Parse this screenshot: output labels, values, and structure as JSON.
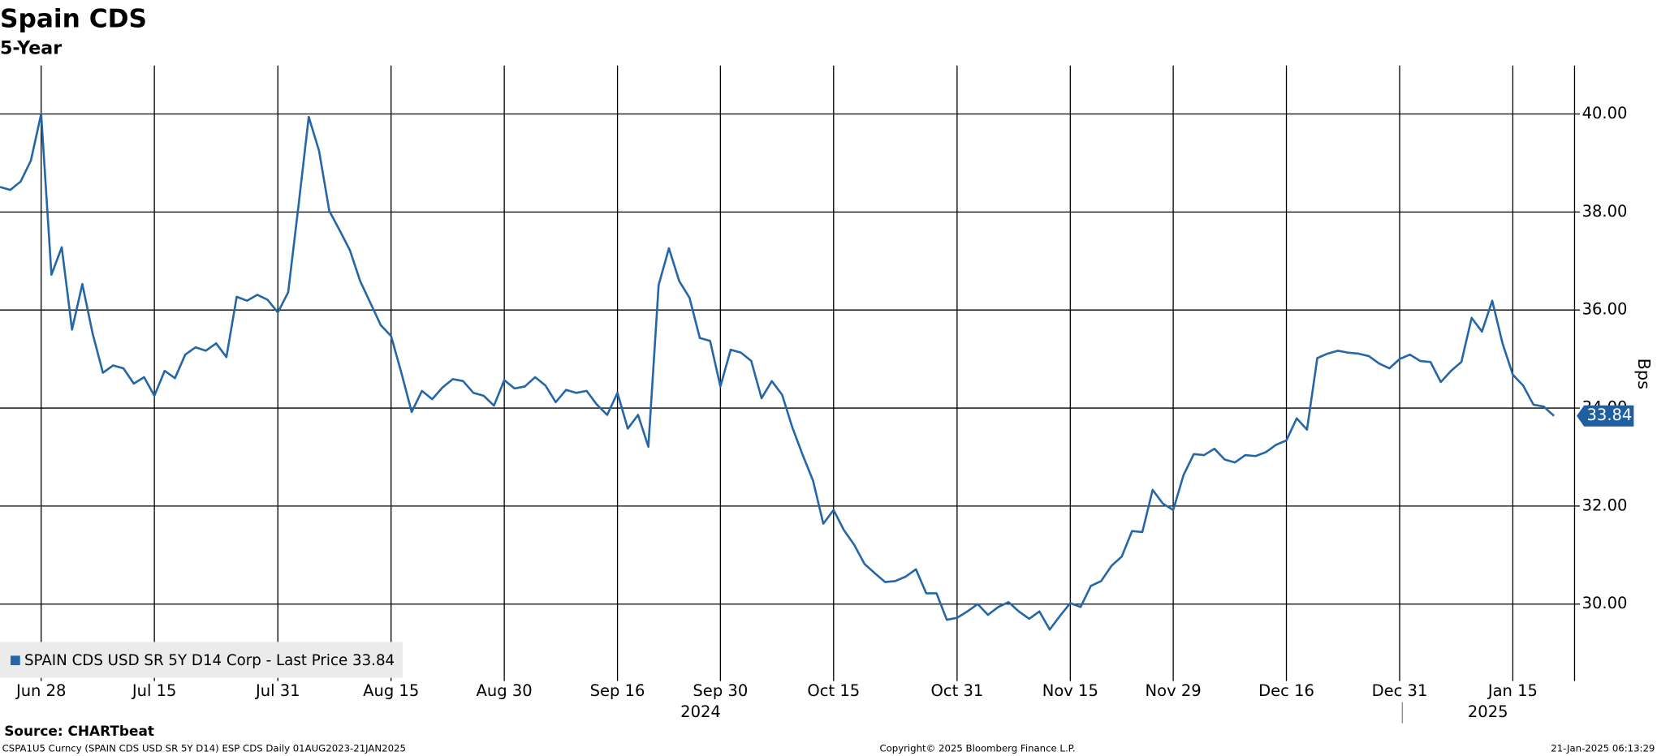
{
  "chart_data": {
    "type": "line",
    "title": "Spain CDS",
    "subtitle": "5-Year",
    "y_label": "Bps",
    "source": "Source: CHARTbeat",
    "footer_left": "CSPA1U5 Curncy (SPAIN CDS USD SR 5Y D14) ESP CDS  Daily 01AUG2023-21JAN2025",
    "footer_center": "Copyright© 2025 Bloomberg Finance L.P.",
    "footer_right": "21-Jan-2025 06:13:29",
    "year_labels": [
      "2024",
      "2025"
    ],
    "last_value_label": "33.84",
    "grid": true,
    "x": [
      "2024-06-24",
      "2024-06-25",
      "2024-06-26",
      "2024-06-27",
      "2024-06-28",
      "2024-07-01",
      "2024-07-02",
      "2024-07-03",
      "2024-07-04",
      "2024-07-05",
      "2024-07-08",
      "2024-07-09",
      "2024-07-10",
      "2024-07-11",
      "2024-07-12",
      "2024-07-15",
      "2024-07-16",
      "2024-07-17",
      "2024-07-18",
      "2024-07-19",
      "2024-07-22",
      "2024-07-23",
      "2024-07-24",
      "2024-07-25",
      "2024-07-26",
      "2024-07-29",
      "2024-07-30",
      "2024-07-31",
      "2024-08-01",
      "2024-08-02",
      "2024-08-05",
      "2024-08-06",
      "2024-08-07",
      "2024-08-08",
      "2024-08-09",
      "2024-08-12",
      "2024-08-13",
      "2024-08-14",
      "2024-08-15",
      "2024-08-16",
      "2024-08-19",
      "2024-08-20",
      "2024-08-21",
      "2024-08-22",
      "2024-08-23",
      "2024-08-26",
      "2024-08-27",
      "2024-08-28",
      "2024-08-29",
      "2024-08-30",
      "2024-09-02",
      "2024-09-03",
      "2024-09-04",
      "2024-09-05",
      "2024-09-06",
      "2024-09-09",
      "2024-09-10",
      "2024-09-11",
      "2024-09-12",
      "2024-09-13",
      "2024-09-16",
      "2024-09-17",
      "2024-09-18",
      "2024-09-19",
      "2024-09-20",
      "2024-09-23",
      "2024-09-24",
      "2024-09-25",
      "2024-09-26",
      "2024-09-27",
      "2024-09-30",
      "2024-10-01",
      "2024-10-02",
      "2024-10-03",
      "2024-10-04",
      "2024-10-07",
      "2024-10-08",
      "2024-10-09",
      "2024-10-10",
      "2024-10-11",
      "2024-10-14",
      "2024-10-15",
      "2024-10-16",
      "2024-10-17",
      "2024-10-18",
      "2024-10-21",
      "2024-10-22",
      "2024-10-23",
      "2024-10-24",
      "2024-10-25",
      "2024-10-28",
      "2024-10-29",
      "2024-10-30",
      "2024-10-31",
      "2024-11-01",
      "2024-11-04",
      "2024-11-05",
      "2024-11-06",
      "2024-11-07",
      "2024-11-08",
      "2024-11-11",
      "2024-11-12",
      "2024-11-13",
      "2024-11-14",
      "2024-11-15",
      "2024-11-18",
      "2024-11-19",
      "2024-11-20",
      "2024-11-21",
      "2024-11-22",
      "2024-11-25",
      "2024-11-26",
      "2024-11-27",
      "2024-11-28",
      "2024-11-29",
      "2024-12-02",
      "2024-12-03",
      "2024-12-04",
      "2024-12-05",
      "2024-12-06",
      "2024-12-09",
      "2024-12-10",
      "2024-12-11",
      "2024-12-12",
      "2024-12-13",
      "2024-12-16",
      "2024-12-17",
      "2024-12-18",
      "2024-12-19",
      "2024-12-20",
      "2024-12-23",
      "2024-12-24",
      "2024-12-25",
      "2024-12-26",
      "2024-12-27",
      "2024-12-30",
      "2024-12-31",
      "2025-01-01",
      "2025-01-02",
      "2025-01-03",
      "2025-01-06",
      "2025-01-07",
      "2025-01-08",
      "2025-01-09",
      "2025-01-10",
      "2025-01-13",
      "2025-01-14",
      "2025-01-15",
      "2025-01-16",
      "2025-01-17",
      "2025-01-20",
      "2025-01-21"
    ],
    "series": [
      {
        "name": "SPAIN CDS USD SR 5Y D14 Corp - Last Price 33.84",
        "color": "#2566a6",
        "values": [
          38.51,
          38.45,
          38.62,
          39.05,
          40.0,
          36.72,
          37.28,
          35.6,
          36.53,
          35.52,
          34.72,
          34.87,
          34.81,
          34.5,
          34.63,
          34.25,
          34.76,
          34.61,
          35.09,
          35.24,
          35.17,
          35.32,
          35.04,
          36.27,
          36.19,
          36.31,
          36.21,
          35.95,
          36.36,
          38.12,
          39.94,
          39.25,
          38.02,
          37.63,
          37.22,
          36.59,
          36.14,
          35.69,
          35.47,
          34.72,
          33.92,
          34.35,
          34.18,
          34.42,
          34.59,
          34.55,
          34.31,
          34.25,
          34.05,
          34.57,
          34.4,
          34.44,
          34.63,
          34.46,
          34.12,
          34.37,
          34.31,
          34.35,
          34.07,
          33.86,
          34.31,
          33.58,
          33.86,
          33.21,
          36.51,
          37.26,
          36.59,
          36.25,
          35.43,
          35.37,
          34.44,
          35.19,
          35.13,
          34.96,
          34.2,
          34.55,
          34.27,
          33.6,
          33.04,
          32.52,
          31.64,
          31.92,
          31.51,
          31.21,
          30.82,
          30.63,
          30.45,
          30.47,
          30.56,
          30.71,
          30.22,
          30.22,
          29.68,
          29.72,
          29.85,
          30.0,
          29.78,
          29.94,
          30.04,
          29.85,
          29.7,
          29.85,
          29.48,
          29.76,
          30.02,
          29.94,
          30.37,
          30.47,
          30.78,
          30.97,
          31.49,
          31.47,
          32.33,
          32.05,
          31.92,
          32.63,
          33.06,
          33.04,
          33.17,
          32.95,
          32.89,
          33.04,
          33.02,
          33.1,
          33.25,
          33.34,
          33.79,
          33.56,
          35.02,
          35.11,
          35.17,
          35.13,
          35.11,
          35.06,
          34.91,
          34.81,
          35.0,
          35.09,
          34.96,
          34.94,
          34.53,
          34.76,
          34.94,
          35.84,
          35.56,
          36.19,
          35.32,
          34.68,
          34.46,
          34.07,
          34.03,
          33.84
        ]
      }
    ],
    "xlim": [
      "2024-06-24",
      "2025-01-23"
    ],
    "xticks": [
      {
        "value": "2024-06-28",
        "label": "Jun 28"
      },
      {
        "value": "2024-07-15",
        "label": "Jul 15"
      },
      {
        "value": "2024-07-31",
        "label": "Jul 31"
      },
      {
        "value": "2024-08-15",
        "label": "Aug 15"
      },
      {
        "value": "2024-08-30",
        "label": "Aug 30"
      },
      {
        "value": "2024-09-16",
        "label": "Sep 16"
      },
      {
        "value": "2024-09-30",
        "label": "Sep 30"
      },
      {
        "value": "2024-10-15",
        "label": "Oct 15"
      },
      {
        "value": "2024-10-31",
        "label": "Oct 31"
      },
      {
        "value": "2024-11-15",
        "label": "Nov 15"
      },
      {
        "value": "2024-11-29",
        "label": "Nov 29"
      },
      {
        "value": "2024-12-16",
        "label": "Dec 16"
      },
      {
        "value": "2024-12-31",
        "label": "Dec 31"
      },
      {
        "value": "2025-01-15",
        "label": "Jan 15"
      }
    ],
    "ylim": [
      28.43,
      40.99
    ],
    "yticks": [
      {
        "value": 30,
        "label": "30.00"
      },
      {
        "value": 32,
        "label": "32.00"
      },
      {
        "value": 34,
        "label": "34.00"
      },
      {
        "value": 36,
        "label": "36.00"
      },
      {
        "value": 38,
        "label": "38.00"
      },
      {
        "value": 40,
        "label": "40.00"
      }
    ]
  }
}
